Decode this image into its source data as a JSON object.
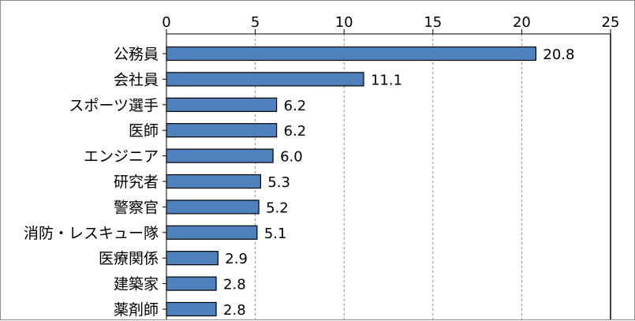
{
  "chart_data": {
    "type": "bar",
    "orientation": "horizontal",
    "categories": [
      "公務員",
      "会社員",
      "スポーツ選手",
      "医師",
      "エンジニア",
      "研究者",
      "警察官",
      "消防・レスキュー隊",
      "医療関係",
      "建築家",
      "薬剤師"
    ],
    "values": [
      20.8,
      11.1,
      6.2,
      6.2,
      6.0,
      5.3,
      5.2,
      5.1,
      2.9,
      2.8,
      2.8
    ],
    "value_labels": [
      "20.8",
      "11.1",
      "6.2",
      "6.2",
      "6.0",
      "5.3",
      "5.2",
      "5.1",
      "2.9",
      "2.8",
      "2.8"
    ],
    "xlim": [
      0,
      25
    ],
    "x_ticks": [
      "0",
      "5",
      "10",
      "15",
      "20",
      "25"
    ],
    "x_axis_position": "top",
    "grid": "vertical dashed",
    "legend": "none",
    "title": "",
    "xlabel": "",
    "ylabel": "",
    "colors": {
      "bar_fill": "#4f81bd",
      "bar_stroke": "#000000",
      "grid": "#8c8c8c",
      "axis": "#000000"
    }
  }
}
